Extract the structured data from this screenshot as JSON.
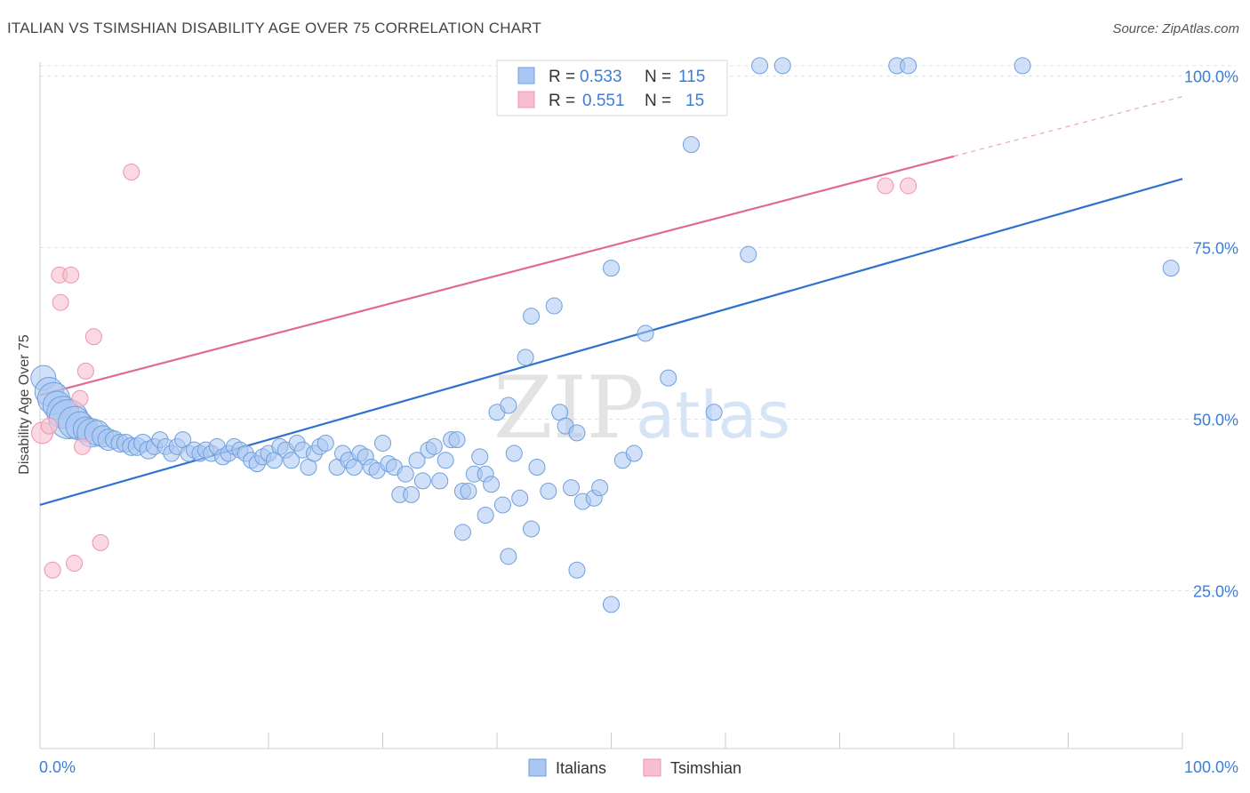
{
  "title": "ITALIAN VS TSIMSHIAN DISABILITY AGE OVER 75 CORRELATION CHART",
  "source": "Source: ZipAtlas.com",
  "watermark": {
    "zip": "ZIP",
    "atlas": "atlas"
  },
  "colors": {
    "italians_fill": "#a9c7f2",
    "italians_stroke": "#6f9fdb",
    "italians_line": "#2f72d0",
    "tsimshian_fill": "#f7bfd0",
    "tsimshian_stroke": "#ec94b0",
    "tsimshian_line": "#e06a92",
    "value_blue": "#3d7dd8",
    "grid": "#e2e2e2"
  },
  "legend": {
    "r_label": "R =",
    "n_label": "N =",
    "italians": {
      "r": "0.533",
      "n": "115"
    },
    "tsimshian": {
      "r": "0.551",
      "n": "15"
    }
  },
  "bottom_legend": {
    "italians": "Italians",
    "tsimshian": "Tsimshian"
  },
  "chart_data": {
    "type": "scatter",
    "xlabel": "",
    "ylabel": "Disability Age Over 75",
    "xlim": [
      0,
      100
    ],
    "ylim": [
      2,
      102
    ],
    "x_tick_labels": [
      "0.0%",
      "100.0%"
    ],
    "y_ticks": [
      25,
      50,
      75,
      100
    ],
    "y_tick_labels": [
      "25.0%",
      "50.0%",
      "75.0%",
      "100.0%"
    ],
    "grid": true,
    "series": [
      {
        "name": "Italians",
        "trend": {
          "x0": 0,
          "y0": 37.5,
          "x1": 100,
          "y1": 85,
          "dashed_from": null
        },
        "points": [
          [
            0.3,
            56,
            14
          ],
          [
            0.8,
            54,
            16
          ],
          [
            1.2,
            53,
            18
          ],
          [
            1.5,
            52,
            16
          ],
          [
            2.0,
            51,
            18
          ],
          [
            2.5,
            50,
            22
          ],
          [
            3.0,
            49.5,
            18
          ],
          [
            3.5,
            49,
            16
          ],
          [
            4.0,
            48.5,
            14
          ],
          [
            4.5,
            48,
            16
          ],
          [
            5.0,
            48,
            14
          ],
          [
            5.5,
            47.5,
            12
          ],
          [
            6.0,
            47,
            12
          ],
          [
            6.5,
            47,
            10
          ],
          [
            7.0,
            46.5,
            10
          ],
          [
            7.5,
            46.5,
            10
          ],
          [
            8.0,
            46,
            10
          ],
          [
            8.5,
            46,
            10
          ],
          [
            9.0,
            46.5,
            10
          ],
          [
            9.5,
            45.5,
            10
          ],
          [
            10.0,
            46,
            9
          ],
          [
            10.5,
            47,
            9
          ],
          [
            11.0,
            46,
            9
          ],
          [
            11.5,
            45,
            9
          ],
          [
            12.0,
            46,
            9
          ],
          [
            12.5,
            47,
            9
          ],
          [
            13.0,
            45,
            9
          ],
          [
            13.5,
            45.5,
            9
          ],
          [
            14.0,
            45,
            9
          ],
          [
            14.5,
            45.5,
            9
          ],
          [
            15.0,
            45,
            9
          ],
          [
            15.5,
            46,
            9
          ],
          [
            16.0,
            44.5,
            9
          ],
          [
            16.5,
            45,
            9
          ],
          [
            17.0,
            46,
            9
          ],
          [
            17.5,
            45.5,
            9
          ],
          [
            18.0,
            45,
            9
          ],
          [
            18.5,
            44,
            9
          ],
          [
            19.0,
            43.5,
            9
          ],
          [
            19.5,
            44.5,
            9
          ],
          [
            20.0,
            45,
            9
          ],
          [
            20.5,
            44,
            9
          ],
          [
            21.0,
            46,
            9
          ],
          [
            21.5,
            45.5,
            9
          ],
          [
            22.0,
            44,
            9
          ],
          [
            22.5,
            46.5,
            9
          ],
          [
            23.0,
            45.5,
            9
          ],
          [
            23.5,
            43,
            9
          ],
          [
            24.0,
            45,
            9
          ],
          [
            24.5,
            46,
            9
          ],
          [
            25.0,
            46.5,
            9
          ],
          [
            26.0,
            43,
            9
          ],
          [
            26.5,
            45,
            9
          ],
          [
            27.0,
            44,
            9
          ],
          [
            27.5,
            43,
            9
          ],
          [
            28.0,
            45,
            9
          ],
          [
            28.5,
            44.5,
            9
          ],
          [
            29.0,
            43,
            9
          ],
          [
            29.5,
            42.5,
            9
          ],
          [
            30.0,
            46.5,
            9
          ],
          [
            30.5,
            43.5,
            9
          ],
          [
            31.0,
            43,
            9
          ],
          [
            31.5,
            39,
            9
          ],
          [
            32.0,
            42,
            9
          ],
          [
            32.5,
            39,
            9
          ],
          [
            33.0,
            44,
            9
          ],
          [
            33.5,
            41,
            9
          ],
          [
            34.0,
            45.5,
            9
          ],
          [
            34.5,
            46,
            9
          ],
          [
            35.0,
            41,
            9
          ],
          [
            35.5,
            44,
            9
          ],
          [
            36.0,
            47,
            9
          ],
          [
            36.5,
            47,
            9
          ],
          [
            37.0,
            39.5,
            9
          ],
          [
            37.5,
            39.5,
            9
          ],
          [
            38.0,
            42,
            9
          ],
          [
            38.5,
            44.5,
            9
          ],
          [
            39.0,
            42,
            9
          ],
          [
            39.5,
            40.5,
            9
          ],
          [
            40.0,
            51,
            9
          ],
          [
            40.5,
            37.5,
            9
          ],
          [
            41.0,
            52,
            9
          ],
          [
            41.5,
            45,
            9
          ],
          [
            42.0,
            38.5,
            9
          ],
          [
            42.5,
            59,
            9
          ],
          [
            43.0,
            65,
            9
          ],
          [
            43.5,
            43,
            9
          ],
          [
            44.5,
            39.5,
            9
          ],
          [
            45.0,
            66.5,
            9
          ],
          [
            45.5,
            51,
            9
          ],
          [
            46.0,
            49,
            9
          ],
          [
            46.5,
            40,
            9
          ],
          [
            47.0,
            48,
            9
          ],
          [
            47.5,
            38,
            9
          ],
          [
            48.5,
            38.5,
            9
          ],
          [
            49.0,
            40,
            9
          ],
          [
            50.0,
            72,
            9
          ],
          [
            50.0,
            23,
            9
          ],
          [
            51.0,
            44,
            9
          ],
          [
            52.0,
            45,
            9
          ],
          [
            53.0,
            62.5,
            9
          ],
          [
            55.0,
            56,
            9
          ],
          [
            57.0,
            90,
            9
          ],
          [
            59.0,
            51,
            9
          ],
          [
            62.0,
            74,
            9
          ],
          [
            63.0,
            101.5,
            9
          ],
          [
            65.0,
            101.5,
            9
          ],
          [
            75.0,
            101.5,
            9
          ],
          [
            76.0,
            101.5,
            9
          ],
          [
            86.0,
            101.5,
            9
          ],
          [
            99.0,
            72,
            9
          ],
          [
            47.0,
            28,
            9
          ],
          [
            43.0,
            34,
            9
          ],
          [
            37.0,
            33.5,
            9
          ],
          [
            39.0,
            36,
            9
          ],
          [
            41.0,
            30,
            9
          ]
        ]
      },
      {
        "name": "Tsimshian",
        "trend": {
          "x0": 0,
          "y0": 53.5,
          "x1": 100,
          "y1": 97,
          "dashed_from": 80
        },
        "points": [
          [
            0.2,
            48,
            12
          ],
          [
            0.8,
            49,
            9
          ],
          [
            1.1,
            28,
            9
          ],
          [
            1.7,
            71,
            9
          ],
          [
            1.8,
            67,
            9
          ],
          [
            2.7,
            71,
            9
          ],
          [
            3.0,
            29,
            9
          ],
          [
            3.5,
            53,
            9
          ],
          [
            3.7,
            46,
            9
          ],
          [
            4.0,
            57,
            9
          ],
          [
            4.7,
            62,
            9
          ],
          [
            5.3,
            32,
            9
          ],
          [
            8.0,
            86,
            9
          ],
          [
            74.0,
            84,
            9
          ],
          [
            76.0,
            84,
            9
          ]
        ]
      }
    ]
  }
}
